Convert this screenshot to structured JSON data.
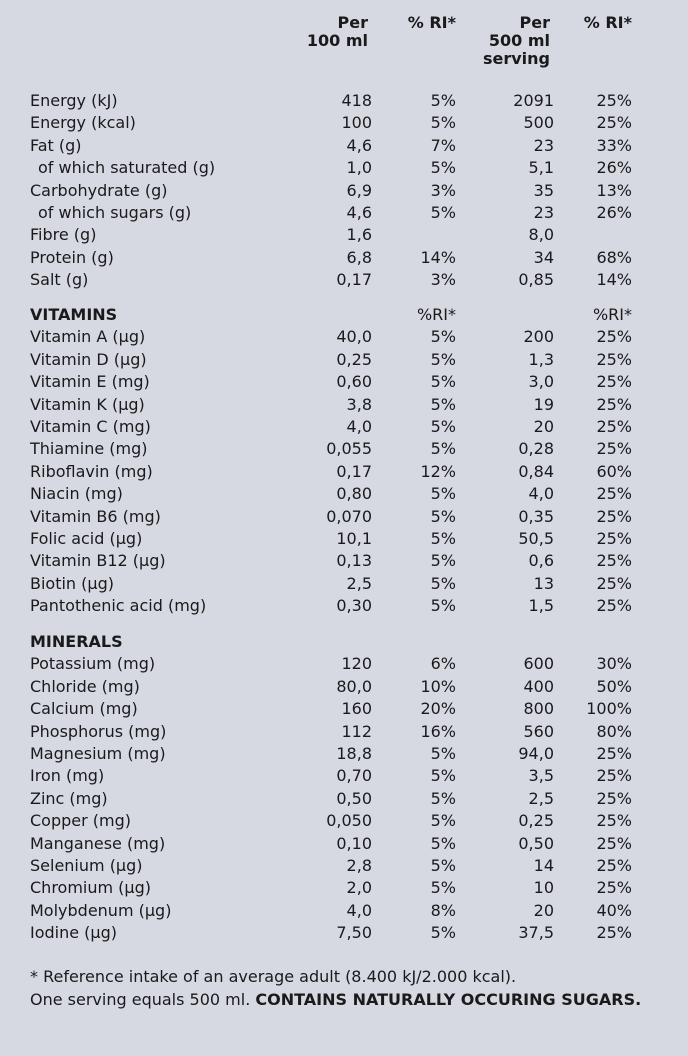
{
  "headers": {
    "per100": "Per\n100 ml",
    "ri1": "% RI*",
    "per500": "Per\n500 ml\nserving",
    "ri2": "% RI*"
  },
  "nutrition": [
    {
      "name": "Energy (kJ)",
      "v1": "418",
      "r1": "5%",
      "v2": "2091",
      "r2": "25%"
    },
    {
      "name": "Energy (kcal)",
      "v1": "100",
      "r1": "5%",
      "v2": "500",
      "r2": "25%"
    },
    {
      "name": "Fat (g)",
      "v1": "4,6",
      "r1": "7%",
      "v2": "23",
      "r2": "33%"
    },
    {
      "name": "of which saturated (g)",
      "v1": "1,0",
      "r1": "5%",
      "v2": "5,1",
      "r2": "26%",
      "sub": true
    },
    {
      "name": "Carbohydrate  (g)",
      "v1": "6,9",
      "r1": "3%",
      "v2": "35",
      "r2": "13%"
    },
    {
      "name": "of which sugars (g)",
      "v1": "4,6",
      "r1": "5%",
      "v2": "23",
      "r2": "26%",
      "sub": true
    },
    {
      "name": "Fibre (g)",
      "v1": "1,6",
      "r1": "",
      "v2": "8,0",
      "r2": ""
    },
    {
      "name": "Protein (g)",
      "v1": "6,8",
      "r1": "14%",
      "v2": "34",
      "r2": "68%"
    },
    {
      "name": "Salt (g)",
      "v1": "0,17",
      "r1": "3%",
      "v2": "0,85",
      "r2": "14%"
    }
  ],
  "vitamins_header": {
    "name": "VITAMINS",
    "r1": "%RI*",
    "r2": "%RI*"
  },
  "vitamins": [
    {
      "name": "Vitamin A (µg)",
      "v1": "40,0",
      "r1": "5%",
      "v2": "200",
      "r2": "25%"
    },
    {
      "name": "Vitamin D (µg)",
      "v1": "0,25",
      "r1": "5%",
      "v2": "1,3",
      "r2": "25%"
    },
    {
      "name": "Vitamin E (mg)",
      "v1": "0,60",
      "r1": "5%",
      "v2": "3,0",
      "r2": "25%"
    },
    {
      "name": "Vitamin K (µg)",
      "v1": "3,8",
      "r1": "5%",
      "v2": "19",
      "r2": "25%"
    },
    {
      "name": "Vitamin C (mg)",
      "v1": "4,0",
      "r1": "5%",
      "v2": "20",
      "r2": "25%"
    },
    {
      "name": "Thiamine (mg)",
      "v1": "0,055",
      "r1": "5%",
      "v2": "0,28",
      "r2": "25%"
    },
    {
      "name": "Riboflavin (mg)",
      "v1": "0,17",
      "r1": "12%",
      "v2": "0,84",
      "r2": "60%"
    },
    {
      "name": "Niacin (mg)",
      "v1": "0,80",
      "r1": "5%",
      "v2": "4,0",
      "r2": "25%"
    },
    {
      "name": "Vitamin B6 (mg)",
      "v1": "0,070",
      "r1": "5%",
      "v2": "0,35",
      "r2": "25%"
    },
    {
      "name": "Folic acid (µg)",
      "v1": "10,1",
      "r1": "5%",
      "v2": "50,5",
      "r2": "25%"
    },
    {
      "name": "Vitamin B12 (µg)",
      "v1": "0,13",
      "r1": "5%",
      "v2": "0,6",
      "r2": "25%"
    },
    {
      "name": "Biotin (µg)",
      "v1": "2,5",
      "r1": "5%",
      "v2": "13",
      "r2": "25%"
    },
    {
      "name": "Pantothenic acid (mg)",
      "v1": "0,30",
      "r1": "5%",
      "v2": "1,5",
      "r2": "25%"
    }
  ],
  "minerals_header": {
    "name": "MINERALS"
  },
  "minerals": [
    {
      "name": "Potassium (mg)",
      "v1": "120",
      "r1": "6%",
      "v2": "600",
      "r2": "30%"
    },
    {
      "name": "Chloride (mg)",
      "v1": "80,0",
      "r1": "10%",
      "v2": "400",
      "r2": "50%"
    },
    {
      "name": "Calcium (mg)",
      "v1": "160",
      "r1": "20%",
      "v2": "800",
      "r2": "100%"
    },
    {
      "name": "Phosphorus (mg)",
      "v1": "112",
      "r1": "16%",
      "v2": "560",
      "r2": "80%"
    },
    {
      "name": "Magnesium (mg)",
      "v1": "18,8",
      "r1": "5%",
      "v2": "94,0",
      "r2": "25%"
    },
    {
      "name": "Iron (mg)",
      "v1": "0,70",
      "r1": "5%",
      "v2": "3,5",
      "r2": "25%"
    },
    {
      "name": "Zinc (mg)",
      "v1": "0,50",
      "r1": "5%",
      "v2": "2,5",
      "r2": "25%"
    },
    {
      "name": "Copper (mg)",
      "v1": "0,050",
      "r1": "5%",
      "v2": "0,25",
      "r2": "25%"
    },
    {
      "name": "Manganese (mg)",
      "v1": "0,10",
      "r1": "5%",
      "v2": "0,50",
      "r2": "25%"
    },
    {
      "name": "Selenium (µg)",
      "v1": "2,8",
      "r1": "5%",
      "v2": "14",
      "r2": "25%"
    },
    {
      "name": "Chromium (µg)",
      "v1": "2,0",
      "r1": "5%",
      "v2": "10",
      "r2": "25%"
    },
    {
      "name": "Molybdenum (µg)",
      "v1": "4,0",
      "r1": "8%",
      "v2": "20",
      "r2": "40%"
    },
    {
      "name": "Iodine (µg)",
      "v1": "7,50",
      "r1": "5%",
      "v2": "37,5",
      "r2": "25%"
    }
  ],
  "footer": {
    "line1": "* Reference intake of an average adult (8.400 kJ/2.000 kcal).",
    "line2_normal": "One serving equals 500 ml. ",
    "line2_bold": "CONTAINS NATURALLY OCCURING SUGARS."
  }
}
